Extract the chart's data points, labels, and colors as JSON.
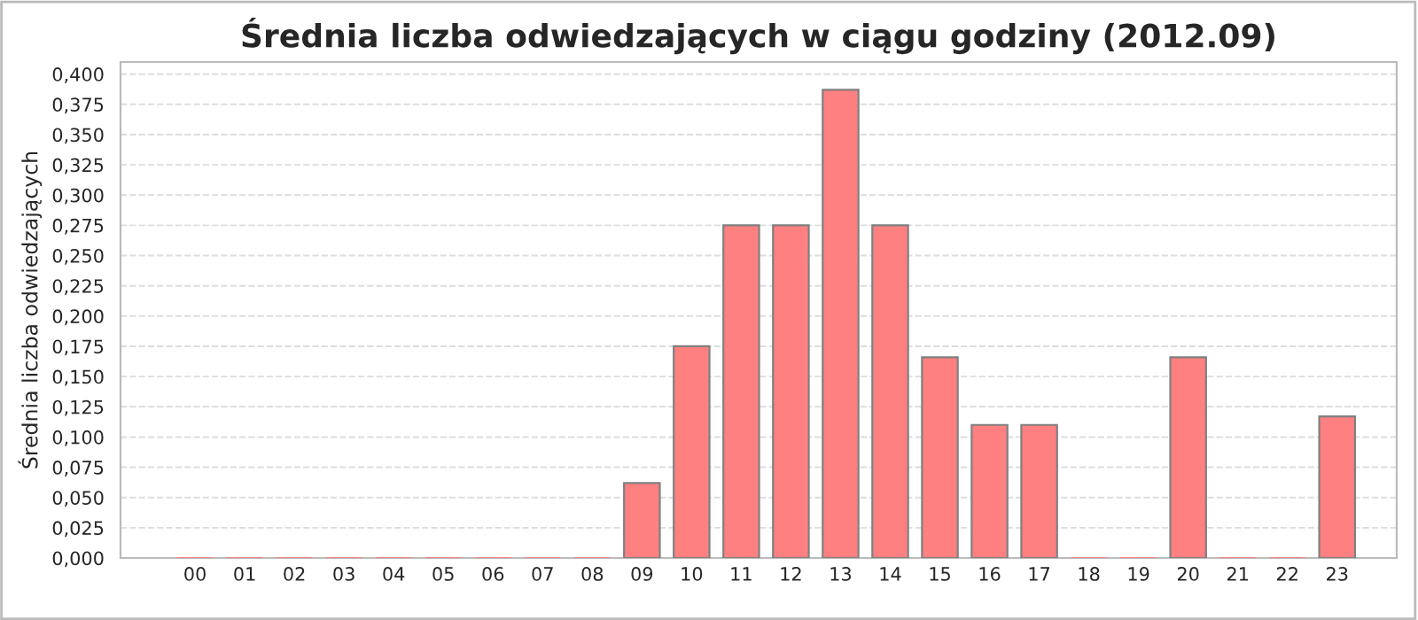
{
  "chart_data": {
    "type": "bar",
    "title": "Średnia liczba odwiedzających w ciągu godziny (2012.09)",
    "ylabel": "Średnia liczba odwiedzających",
    "categories": [
      "00",
      "01",
      "02",
      "03",
      "04",
      "05",
      "06",
      "07",
      "08",
      "09",
      "10",
      "11",
      "12",
      "13",
      "14",
      "15",
      "16",
      "17",
      "18",
      "19",
      "20",
      "21",
      "22",
      "23"
    ],
    "values": [
      0,
      0,
      0,
      0,
      0,
      0,
      0,
      0,
      0,
      0.062,
      0.175,
      0.275,
      0.275,
      0.387,
      0.275,
      0.166,
      0.11,
      0.11,
      0,
      0,
      0.166,
      0,
      0,
      0.117
    ],
    "color": "#ff8080",
    "ylim": [
      0,
      0.41
    ],
    "yticks": [
      {
        "value": 0,
        "label": "0,000"
      },
      {
        "value": 0.025,
        "label": "0,025"
      },
      {
        "value": 0.05,
        "label": "0,050"
      },
      {
        "value": 0.075,
        "label": "0,075"
      },
      {
        "value": 0.1,
        "label": "0,100"
      },
      {
        "value": 0.125,
        "label": "0,125"
      },
      {
        "value": 0.15,
        "label": "0,150"
      },
      {
        "value": 0.175,
        "label": "0,175"
      },
      {
        "value": 0.2,
        "label": "0,200"
      },
      {
        "value": 0.225,
        "label": "0,225"
      },
      {
        "value": 0.25,
        "label": "0,250"
      },
      {
        "value": 0.275,
        "label": "0,275"
      },
      {
        "value": 0.3,
        "label": "0,300"
      },
      {
        "value": 0.325,
        "label": "0,325"
      },
      {
        "value": 0.35,
        "label": "0,350"
      },
      {
        "value": 0.375,
        "label": "0,375"
      },
      {
        "value": 0.4,
        "label": "0,400"
      }
    ],
    "grid": "y"
  }
}
